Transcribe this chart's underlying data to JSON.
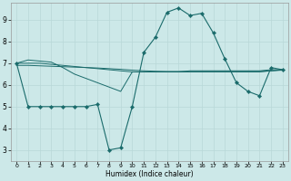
{
  "xlabel": "Humidex (Indice chaleur)",
  "bg_color": "#cce8e8",
  "grid_color": "#b8d8d8",
  "line_color": "#1a6b6b",
  "xlim": [
    -0.5,
    23.5
  ],
  "ylim": [
    2.5,
    9.8
  ],
  "yticks": [
    3,
    4,
    5,
    6,
    7,
    8,
    9
  ],
  "xticks": [
    0,
    1,
    2,
    3,
    4,
    5,
    6,
    7,
    8,
    9,
    10,
    11,
    12,
    13,
    14,
    15,
    16,
    17,
    18,
    19,
    20,
    21,
    22,
    23
  ],
  "line1_x": [
    0,
    1,
    2,
    3,
    4,
    5,
    6,
    7,
    8,
    9,
    10,
    11,
    12,
    13,
    14,
    15,
    16,
    17,
    18,
    19,
    20,
    21,
    22,
    23
  ],
  "line1_y": [
    7.0,
    5.0,
    5.0,
    5.0,
    5.0,
    5.0,
    5.0,
    5.1,
    3.0,
    3.1,
    5.0,
    7.5,
    8.2,
    9.35,
    9.55,
    9.2,
    9.3,
    8.4,
    7.2,
    6.1,
    5.7,
    5.5,
    6.8,
    6.7
  ],
  "line2_x": [
    0,
    1,
    2,
    3,
    4,
    5,
    6,
    7,
    8,
    9,
    10,
    11,
    12,
    13,
    14,
    15,
    16,
    17,
    18,
    19,
    20,
    21,
    22,
    23
  ],
  "line2_y": [
    7.0,
    7.15,
    7.1,
    7.05,
    6.8,
    6.5,
    6.3,
    6.1,
    5.9,
    5.7,
    6.6,
    6.6,
    6.6,
    6.6,
    6.6,
    6.65,
    6.65,
    6.65,
    6.65,
    6.65,
    6.65,
    6.65,
    6.7,
    6.7
  ],
  "line3_x": [
    0,
    1,
    2,
    3,
    4,
    5,
    6,
    7,
    8,
    9,
    10,
    11,
    12,
    13,
    14,
    15,
    16,
    17,
    18,
    19,
    20,
    21,
    22,
    23
  ],
  "line3_y": [
    7.0,
    7.0,
    7.0,
    6.95,
    6.9,
    6.85,
    6.8,
    6.75,
    6.7,
    6.65,
    6.6,
    6.6,
    6.6,
    6.6,
    6.6,
    6.6,
    6.6,
    6.6,
    6.6,
    6.6,
    6.6,
    6.6,
    6.65,
    6.7
  ],
  "line4_x": [
    0,
    1,
    2,
    3,
    4,
    5,
    6,
    7,
    8,
    9,
    10,
    11,
    12,
    13,
    14,
    15,
    16,
    17,
    18,
    19,
    20,
    21,
    22,
    23
  ],
  "line4_y": [
    6.9,
    6.9,
    6.88,
    6.86,
    6.84,
    6.82,
    6.8,
    6.78,
    6.75,
    6.72,
    6.68,
    6.65,
    6.63,
    6.62,
    6.62,
    6.62,
    6.62,
    6.62,
    6.62,
    6.62,
    6.62,
    6.62,
    6.65,
    6.68
  ]
}
